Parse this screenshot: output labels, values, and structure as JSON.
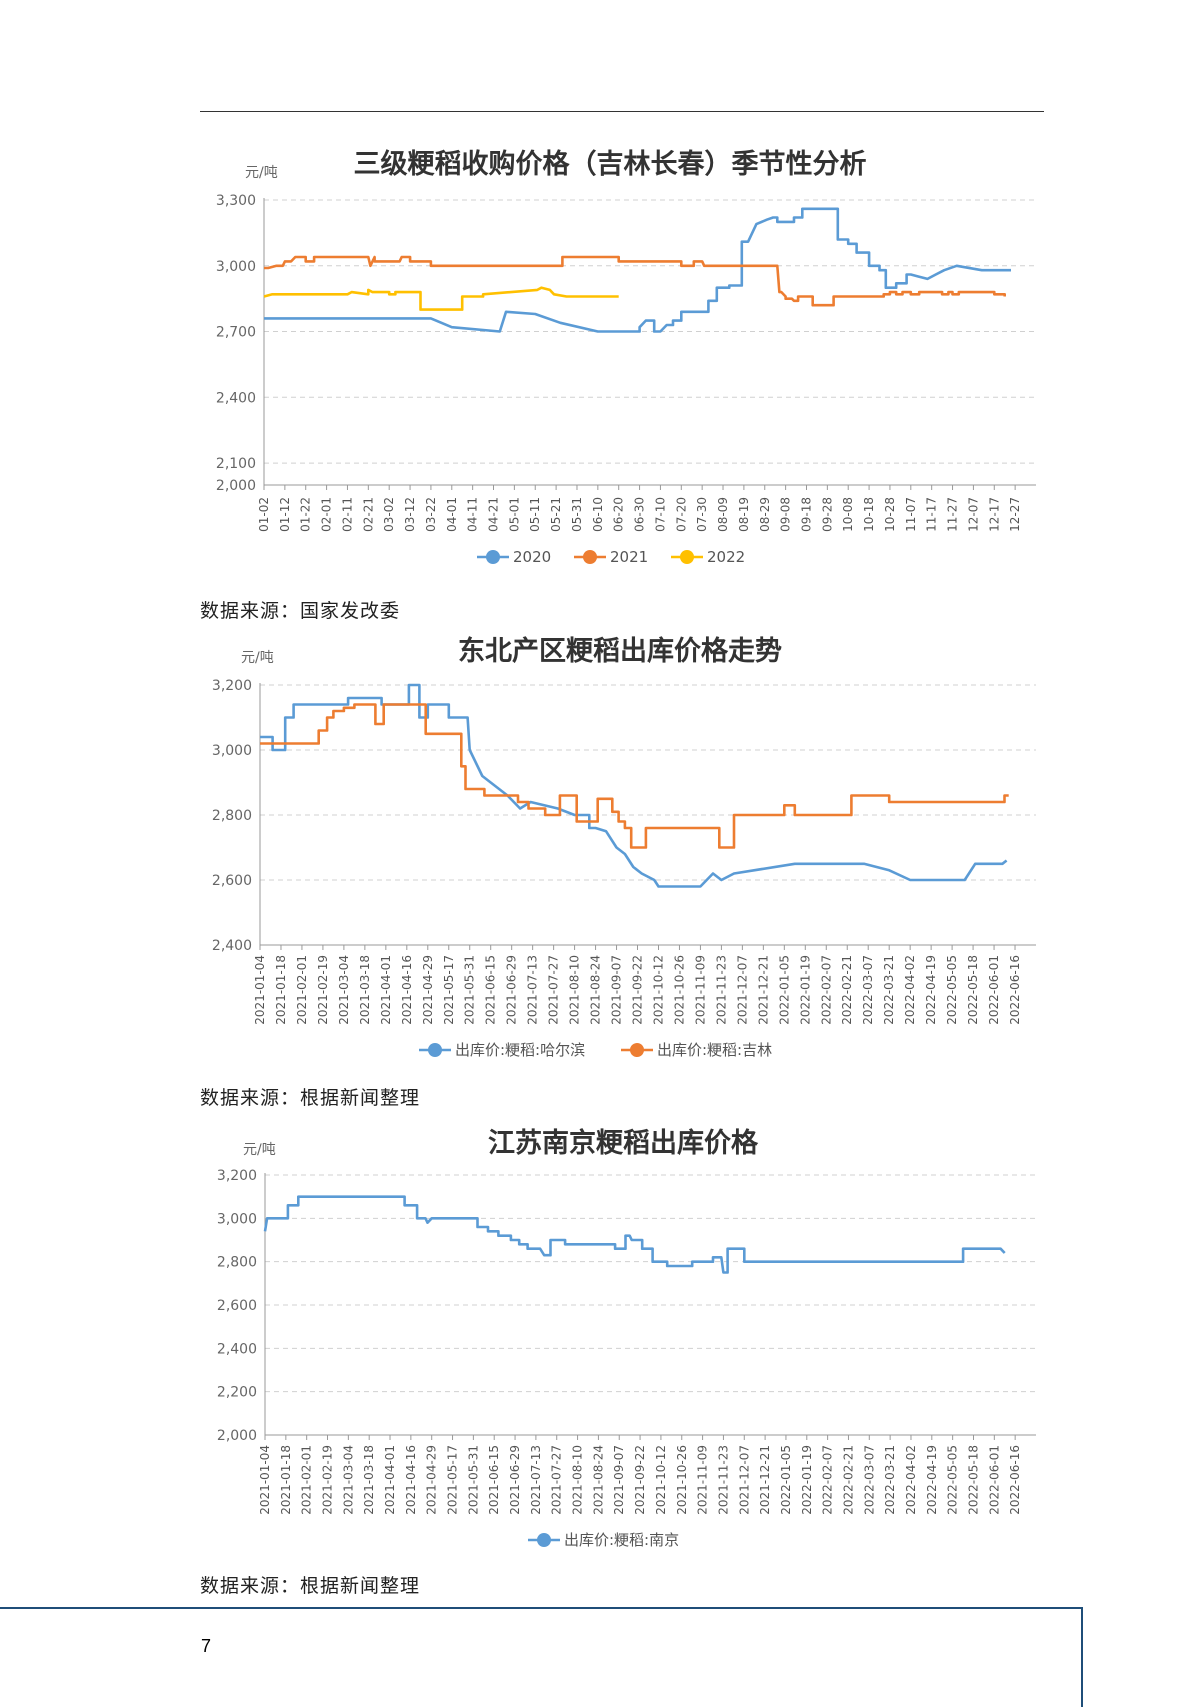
{
  "page": {
    "page_number": "7"
  },
  "sources": [
    "数据来源：国家发改委",
    "数据来源：根据新闻整理",
    "数据来源：根据新闻整理"
  ],
  "chart_data": [
    {
      "type": "line",
      "title": "三级粳稻收购价格（吉林长春）季节性分析",
      "ylabel": "元/吨",
      "ylim": [
        2000,
        3300
      ],
      "yticks": [
        2000,
        2100,
        2400,
        2700,
        3000,
        3300
      ],
      "grid": true,
      "legend_position": "bottom",
      "x_categories": [
        "01-02",
        "01-12",
        "01-22",
        "02-01",
        "02-11",
        "02-21",
        "03-02",
        "03-12",
        "03-22",
        "04-01",
        "04-11",
        "04-21",
        "05-01",
        "05-11",
        "05-21",
        "05-31",
        "06-10",
        "06-20",
        "06-30",
        "07-10",
        "07-20",
        "07-30",
        "08-09",
        "08-19",
        "08-29",
        "09-08",
        "09-18",
        "09-28",
        "10-08",
        "10-18",
        "10-28",
        "11-07",
        "11-17",
        "11-27",
        "12-07",
        "12-17",
        "12-27"
      ],
      "series": [
        {
          "name": "2020",
          "color": "#5b9bd5",
          "x": [
            0,
            8,
            8.5,
            8.5,
            9,
            9,
            11.3,
            11.3,
            11.6,
            11.6,
            13,
            13,
            14.2,
            14.2,
            16,
            16,
            18,
            18,
            18.3,
            18.7,
            18.7,
            19,
            19.3,
            19.6,
            19.6,
            20,
            20,
            21.3,
            21.3,
            21.7,
            21.7,
            22.3,
            22.3,
            22.9,
            22.9,
            23.2,
            23.6,
            24.1,
            24.1,
            24.4,
            24.6,
            24.6,
            25.4,
            25.4,
            25.8,
            25.8,
            27.5,
            27.5,
            28,
            28,
            28.4,
            28.4,
            29,
            29,
            29.5,
            29.5,
            29.8,
            29.8,
            30.3,
            30.3,
            30.8,
            30.8,
            31,
            31.4,
            31.4,
            31.8,
            31.8,
            32.2,
            32.2,
            32.6,
            32.6,
            33.2,
            33.2,
            34.4,
            34.4,
            35.8
          ],
          "y": [
            2760,
            2760,
            2740,
            2740,
            2720,
            2720,
            2700,
            2700,
            2790,
            2790,
            2780,
            2780,
            2740,
            2740,
            2700,
            2700,
            2700,
            2720,
            2750,
            2750,
            2700,
            2700,
            2730,
            2730,
            2750,
            2750,
            2790,
            2790,
            2840,
            2840,
            2900,
            2900,
            2910,
            2910,
            3110,
            3110,
            3190,
            3210,
            3210,
            3220,
            3220,
            3200,
            3200,
            3220,
            3220,
            3260,
            3260,
            3120,
            3120,
            3100,
            3100,
            3060,
            3060,
            3000,
            3000,
            2980,
            2980,
            2900,
            2900,
            2920,
            2920,
            2960,
            2960,
            2950,
            2950,
            2940,
            2940,
            2960,
            2960,
            2980,
            2980,
            3000,
            3000,
            2980,
            2980,
            2980
          ]
        },
        {
          "name": "2021",
          "color": "#ed7d31",
          "x": [
            0,
            0.2,
            0.6,
            0.9,
            1,
            1.3,
            1.5,
            2,
            2,
            2.4,
            2.4,
            5,
            5.1,
            5.3,
            5.3,
            6.5,
            6.6,
            7,
            7,
            7.6,
            7.6,
            8,
            8,
            11,
            11,
            14.3,
            14.3,
            14.6,
            14.6,
            17,
            17,
            20,
            20,
            20.6,
            20.6,
            21,
            21.1,
            21.3,
            21.3,
            23.3,
            23.3,
            24.6,
            24.7,
            24.8,
            25,
            25,
            25.3,
            25.4,
            25.6,
            25.6,
            26,
            26.3,
            26.3,
            27.3,
            27.3,
            29.7,
            29.7,
            30,
            30,
            30.3,
            30.3,
            30.6,
            30.6,
            31,
            31,
            31.4,
            31.4,
            32.5,
            32.5,
            32.8,
            32.8,
            33,
            33,
            33.3,
            33.3,
            34,
            34,
            35,
            35,
            35.5,
            35.5
          ],
          "y": [
            2990,
            2990,
            3000,
            3000,
            3020,
            3020,
            3040,
            3040,
            3020,
            3020,
            3040,
            3040,
            3000,
            3040,
            3020,
            3020,
            3040,
            3040,
            3020,
            3020,
            3020,
            3020,
            3000,
            3000,
            3000,
            3000,
            3040,
            3040,
            3040,
            3040,
            3020,
            3020,
            3000,
            3000,
            3020,
            3020,
            3000,
            3000,
            3000,
            3000,
            3000,
            3000,
            2880,
            2880,
            2860,
            2850,
            2850,
            2840,
            2840,
            2860,
            2860,
            2860,
            2820,
            2820,
            2860,
            2860,
            2870,
            2870,
            2880,
            2880,
            2870,
            2870,
            2880,
            2880,
            2870,
            2870,
            2880,
            2880,
            2870,
            2870,
            2880,
            2880,
            2870,
            2870,
            2880,
            2880,
            2880,
            2880,
            2870,
            2870,
            2860
          ]
        },
        {
          "name": "2022",
          "color": "#ffc000",
          "x": [
            0,
            0.4,
            4,
            4.2,
            5,
            5,
            5.2,
            5.2,
            6,
            6,
            6.3,
            6.3,
            7.5,
            7.5,
            9.5,
            9.5,
            10.5,
            10.5,
            13.1,
            13.3,
            13.7,
            13.9,
            14.5,
            14.5,
            17
          ],
          "y": [
            2860,
            2870,
            2870,
            2880,
            2870,
            2890,
            2880,
            2880,
            2880,
            2870,
            2870,
            2880,
            2880,
            2800,
            2800,
            2860,
            2860,
            2870,
            2890,
            2900,
            2890,
            2870,
            2860,
            2860,
            2860
          ]
        }
      ]
    },
    {
      "type": "line",
      "title": "东北产区粳稻出库价格走势",
      "ylabel": "元/吨",
      "ylim": [
        2400,
        3200
      ],
      "yticks": [
        2400,
        2600,
        2800,
        3000,
        3200
      ],
      "grid": true,
      "legend_position": "bottom",
      "x_categories": [
        "2021-01-04",
        "2021-01-18",
        "2021-02-01",
        "2021-02-19",
        "2021-03-04",
        "2021-03-18",
        "2021-04-01",
        "2021-04-16",
        "2021-04-29",
        "2021-05-17",
        "2021-05-31",
        "2021-06-15",
        "2021-06-29",
        "2021-07-13",
        "2021-07-27",
        "2021-08-10",
        "2021-08-24",
        "2021-09-07",
        "2021-09-22",
        "2021-10-12",
        "2021-10-26",
        "2021-11-09",
        "2021-11-23",
        "2021-12-07",
        "2021-12-21",
        "2022-01-05",
        "2022-01-19",
        "2022-02-07",
        "2022-02-21",
        "2022-03-07",
        "2022-03-21",
        "2022-04-02",
        "2022-04-19",
        "2022-05-05",
        "2022-05-18",
        "2022-06-01",
        "2022-06-16"
      ],
      "series": [
        {
          "name": "出库价:粳稻:哈尔滨",
          "color": "#5b9bd5",
          "x": [
            0,
            0.6,
            0.6,
            1.2,
            1.2,
            1.6,
            1.6,
            4.2,
            4.2,
            5.8,
            5.8,
            7.1,
            7.1,
            7.6,
            7.6,
            8,
            8,
            9,
            9,
            9.9,
            10,
            10,
            10.3,
            10.3,
            10.6,
            10.6,
            11.8,
            11.8,
            12.4,
            12.4,
            12.9,
            12.9,
            14.2,
            14.2,
            15,
            15,
            15.2,
            15.7,
            15.7,
            16,
            16,
            16.5,
            16.5,
            17,
            17,
            17.4,
            17.4,
            17.8,
            17.8,
            18.2,
            18.2,
            18.8,
            18.8,
            19,
            19,
            21,
            21,
            21.3,
            21.3,
            21.6,
            21.6,
            22,
            22,
            22.6,
            22.6,
            25.5,
            25.5,
            28.8,
            28.8,
            30,
            30,
            31,
            31,
            33.6,
            33.6,
            34.1,
            34.1,
            35.4,
            35.6
          ],
          "y": [
            3040,
            3040,
            3000,
            3000,
            3100,
            3100,
            3140,
            3140,
            3160,
            3160,
            3140,
            3140,
            3200,
            3200,
            3100,
            3100,
            3140,
            3140,
            3100,
            3100,
            3000,
            3000,
            2960,
            2960,
            2920,
            2920,
            2860,
            2860,
            2820,
            2820,
            2840,
            2840,
            2820,
            2820,
            2800,
            2800,
            2800,
            2800,
            2760,
            2760,
            2760,
            2750,
            2750,
            2700,
            2700,
            2680,
            2680,
            2640,
            2640,
            2620,
            2620,
            2600,
            2600,
            2580,
            2580,
            2580,
            2580,
            2600,
            2600,
            2620,
            2620,
            2600,
            2600,
            2620,
            2620,
            2650,
            2650,
            2650,
            2650,
            2630,
            2630,
            2600,
            2600,
            2600,
            2600,
            2650,
            2650,
            2650,
            2660
          ]
        },
        {
          "name": "出库价:粳稻:吉林",
          "color": "#ed7d31",
          "x": [
            0,
            1.5,
            1.5,
            2.8,
            2.8,
            3.2,
            3.2,
            3.5,
            3.5,
            4,
            4,
            4.5,
            4.5,
            5.5,
            5.5,
            5.9,
            5.9,
            6.5,
            6.5,
            7.9,
            7.9,
            9.6,
            9.6,
            9.8,
            9.8,
            10.7,
            10.7,
            12.3,
            12.3,
            12.8,
            12.8,
            13.6,
            13.6,
            14.3,
            14.3,
            15.1,
            15.1,
            16.1,
            16.1,
            16.8,
            16.8,
            17.1,
            17.1,
            17.4,
            17.4,
            17.7,
            17.7,
            18.4,
            18.4,
            18.9,
            18.9,
            21.9,
            21.9,
            22.6,
            22.6,
            25,
            25,
            25.5,
            25.5,
            26,
            26,
            28.2,
            28.2,
            30,
            30,
            30.2,
            30.2,
            35.5,
            35.5,
            35.7
          ],
          "y": [
            3020,
            3020,
            3020,
            3020,
            3060,
            3060,
            3100,
            3100,
            3120,
            3120,
            3130,
            3130,
            3140,
            3140,
            3080,
            3080,
            3140,
            3140,
            3140,
            3140,
            3050,
            3050,
            2950,
            2950,
            2880,
            2880,
            2860,
            2860,
            2840,
            2840,
            2820,
            2820,
            2800,
            2800,
            2860,
            2860,
            2780,
            2780,
            2850,
            2850,
            2810,
            2810,
            2780,
            2780,
            2760,
            2760,
            2700,
            2700,
            2760,
            2760,
            2760,
            2760,
            2700,
            2700,
            2800,
            2800,
            2830,
            2830,
            2800,
            2800,
            2800,
            2800,
            2860,
            2860,
            2840,
            2840,
            2840,
            2840,
            2860,
            2860
          ]
        }
      ]
    },
    {
      "type": "line",
      "title": "江苏南京粳稻出库价格",
      "ylabel": "元/吨",
      "ylim": [
        2000,
        3200
      ],
      "yticks": [
        2000,
        2200,
        2400,
        2600,
        2800,
        3000,
        3200
      ],
      "grid": true,
      "legend_position": "bottom",
      "x_categories": [
        "2021-01-04",
        "2021-01-18",
        "2021-02-01",
        "2021-02-19",
        "2021-03-04",
        "2021-03-18",
        "2021-04-01",
        "2021-04-16",
        "2021-04-29",
        "2021-05-17",
        "2021-05-31",
        "2021-06-15",
        "2021-06-29",
        "2021-07-13",
        "2021-07-27",
        "2021-08-10",
        "2021-08-24",
        "2021-09-07",
        "2021-09-22",
        "2021-10-12",
        "2021-10-26",
        "2021-11-09",
        "2021-11-23",
        "2021-12-07",
        "2021-12-21",
        "2022-01-05",
        "2022-01-19",
        "2022-02-07",
        "2022-02-21",
        "2022-03-07",
        "2022-03-21",
        "2022-04-02",
        "2022-04-19",
        "2022-05-05",
        "2022-05-18",
        "2022-06-01",
        "2022-06-16"
      ],
      "series": [
        {
          "name": "出库价:粳稻:南京",
          "color": "#5b9bd5",
          "x": [
            0,
            0.1,
            0.1,
            1.1,
            1.1,
            1.6,
            1.6,
            6.7,
            6.7,
            7.3,
            7.3,
            7.7,
            7.8,
            8,
            8,
            10.2,
            10.2,
            10.7,
            10.7,
            11.2,
            11.2,
            11.8,
            11.8,
            12.2,
            12.2,
            12.6,
            12.6,
            13.2,
            13.4,
            13.7,
            13.7,
            14.4,
            14.4,
            16.8,
            16.8,
            17.3,
            17.3,
            17.5,
            17.6,
            18.1,
            18.1,
            18.6,
            18.6,
            19.3,
            19.3,
            20.5,
            20.5,
            21.5,
            21.5,
            21.9,
            22,
            22.2,
            22.2,
            23,
            23,
            33.5,
            33.5,
            35.3,
            35.5
          ],
          "y": [
            2940,
            3000,
            3000,
            3000,
            3060,
            3060,
            3100,
            3100,
            3060,
            3060,
            3000,
            3000,
            2980,
            3000,
            3000,
            3000,
            2960,
            2960,
            2940,
            2940,
            2920,
            2920,
            2900,
            2900,
            2880,
            2880,
            2860,
            2860,
            2830,
            2830,
            2900,
            2900,
            2880,
            2880,
            2860,
            2860,
            2920,
            2920,
            2900,
            2900,
            2860,
            2860,
            2800,
            2800,
            2780,
            2780,
            2800,
            2800,
            2820,
            2820,
            2750,
            2750,
            2860,
            2860,
            2800,
            2800,
            2860,
            2860,
            2840
          ]
        }
      ]
    }
  ]
}
